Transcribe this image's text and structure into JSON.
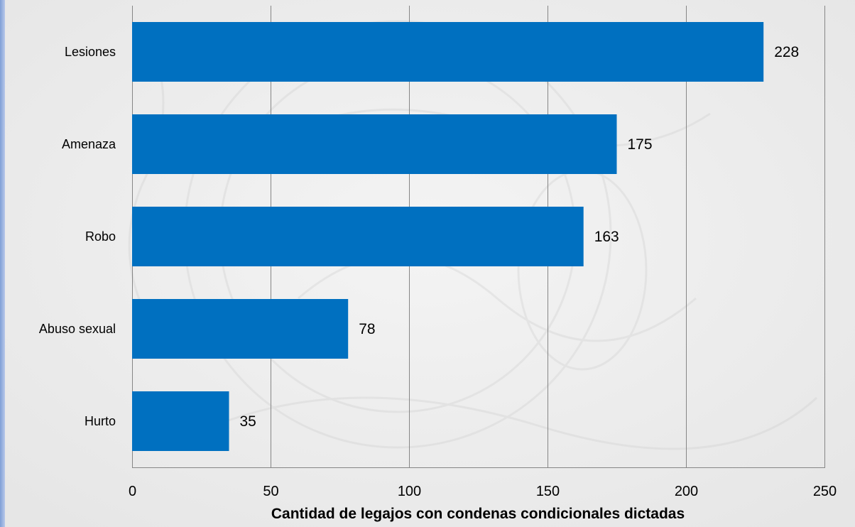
{
  "chart_data": {
    "type": "bar",
    "orientation": "horizontal",
    "categories": [
      "Lesiones",
      "Amenaza",
      "Robo",
      "Abuso sexual",
      "Hurto"
    ],
    "values": [
      228,
      175,
      163,
      78,
      35
    ],
    "data_labels": [
      "228",
      "175",
      "163",
      "78",
      "35"
    ],
    "title": "",
    "xlabel": "Cantidad de legajos con condenas condicionales dictadas",
    "ylabel": "",
    "xlim": [
      0,
      250
    ],
    "x_ticks": [
      0,
      50,
      100,
      150,
      200,
      250
    ],
    "x_tick_labels": [
      "0",
      "50",
      "100",
      "150",
      "200",
      "250"
    ],
    "grid": "vertical",
    "legend": "none",
    "colors": {
      "bar": "#0070C0",
      "grid": "#868686",
      "left_accent": "#8FAAD9",
      "background": "#EEEEEE"
    }
  }
}
